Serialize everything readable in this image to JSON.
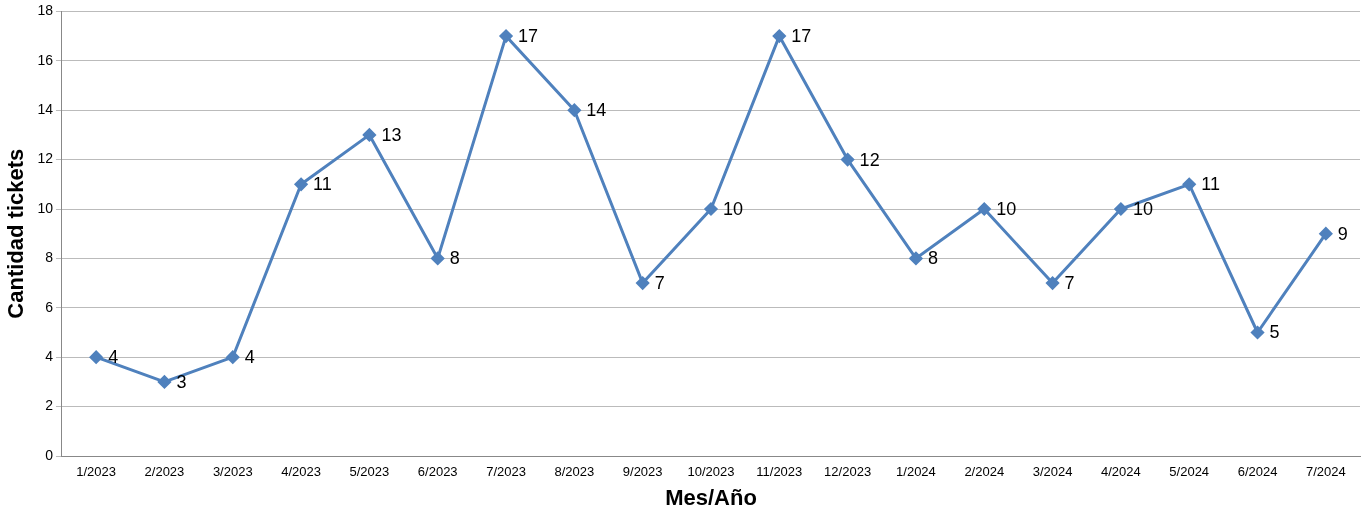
{
  "chart_data": {
    "type": "line",
    "xlabel": "Mes/Año",
    "ylabel": "Cantidad tickets",
    "categories": [
      "1/2023",
      "2/2023",
      "3/2023",
      "4/2023",
      "5/2023",
      "6/2023",
      "7/2023",
      "8/2023",
      "9/2023",
      "10/2023",
      "11/2023",
      "12/2023",
      "1/2024",
      "2/2024",
      "3/2024",
      "4/2024",
      "5/2024",
      "6/2024",
      "7/2024"
    ],
    "series": [
      {
        "color": "#4f81bd",
        "values": [
          4,
          3,
          4,
          11,
          13,
          8,
          17,
          14,
          7,
          10,
          17,
          12,
          8,
          10,
          7,
          10,
          11,
          5,
          9
        ]
      }
    ],
    "ylim": [
      0,
      18
    ],
    "yticks": [
      0,
      2,
      4,
      6,
      8,
      10,
      12,
      14,
      16,
      18
    ],
    "grid": "y",
    "legend": false,
    "marker": "diamond",
    "line_style": "solid",
    "data_labels": true
  }
}
